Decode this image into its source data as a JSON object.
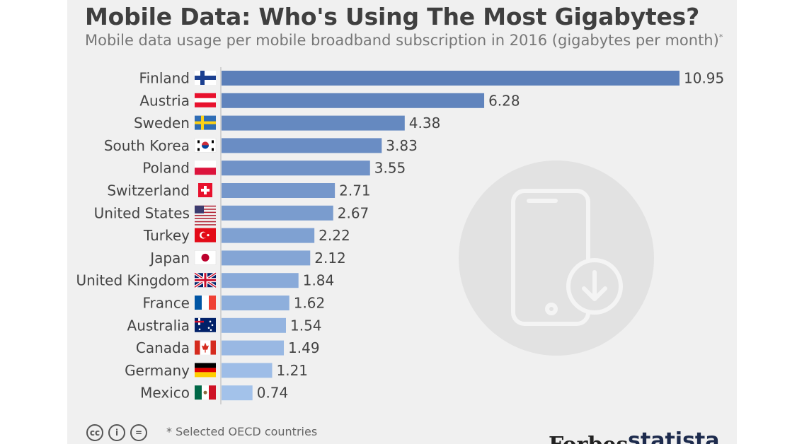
{
  "header": {
    "title": "Mobile Data: Who's Using The Most Gigabytes?",
    "subtitle": "Mobile data usage per mobile broadband subscription in 2016 (gigabytes per month)",
    "subtitle_mark": "*"
  },
  "chart_data": {
    "type": "bar",
    "orientation": "horizontal",
    "title": "Mobile Data: Who's Using The Most Gigabytes?",
    "subtitle": "Mobile data usage per mobile broadband subscription in 2016 (gigabytes per month)",
    "categories": [
      "Finland",
      "Austria",
      "Sweden",
      "South Korea",
      "Poland",
      "Switzerland",
      "United States",
      "Turkey",
      "Japan",
      "United Kingdom",
      "France",
      "Australia",
      "Canada",
      "Germany",
      "Mexico"
    ],
    "values": [
      10.95,
      6.28,
      4.38,
      3.83,
      3.55,
      2.71,
      2.67,
      2.22,
      2.12,
      1.84,
      1.62,
      1.54,
      1.49,
      1.21,
      0.74
    ],
    "value_labels": [
      "10.95",
      "6.28",
      "4.38",
      "3.83",
      "3.55",
      "2.71",
      "2.67",
      "2.22",
      "2.12",
      "1.84",
      "1.62",
      "1.54",
      "1.49",
      "1.21",
      "0.74"
    ],
    "flags": [
      "finland",
      "austria",
      "sweden",
      "south-korea",
      "poland",
      "switzerland",
      "united-states",
      "turkey",
      "japan",
      "united-kingdom",
      "france",
      "australia",
      "canada",
      "germany",
      "mexico"
    ],
    "xlim": [
      0,
      10.95
    ],
    "grid": false,
    "legend": "none",
    "bar_color_top": "#5b7fb9",
    "bar_color_bottom": "#a3c2ea"
  },
  "footer": {
    "footnote": "* Selected OECD countries",
    "license_icons": [
      "cc",
      "i",
      "="
    ],
    "brand_left": "Forbes",
    "brand_right": "statista"
  },
  "colors": {
    "panel": "#f0f0f0",
    "title": "#3f3f3f",
    "subtitle": "#777777",
    "watermark": "#e2e2e2"
  }
}
